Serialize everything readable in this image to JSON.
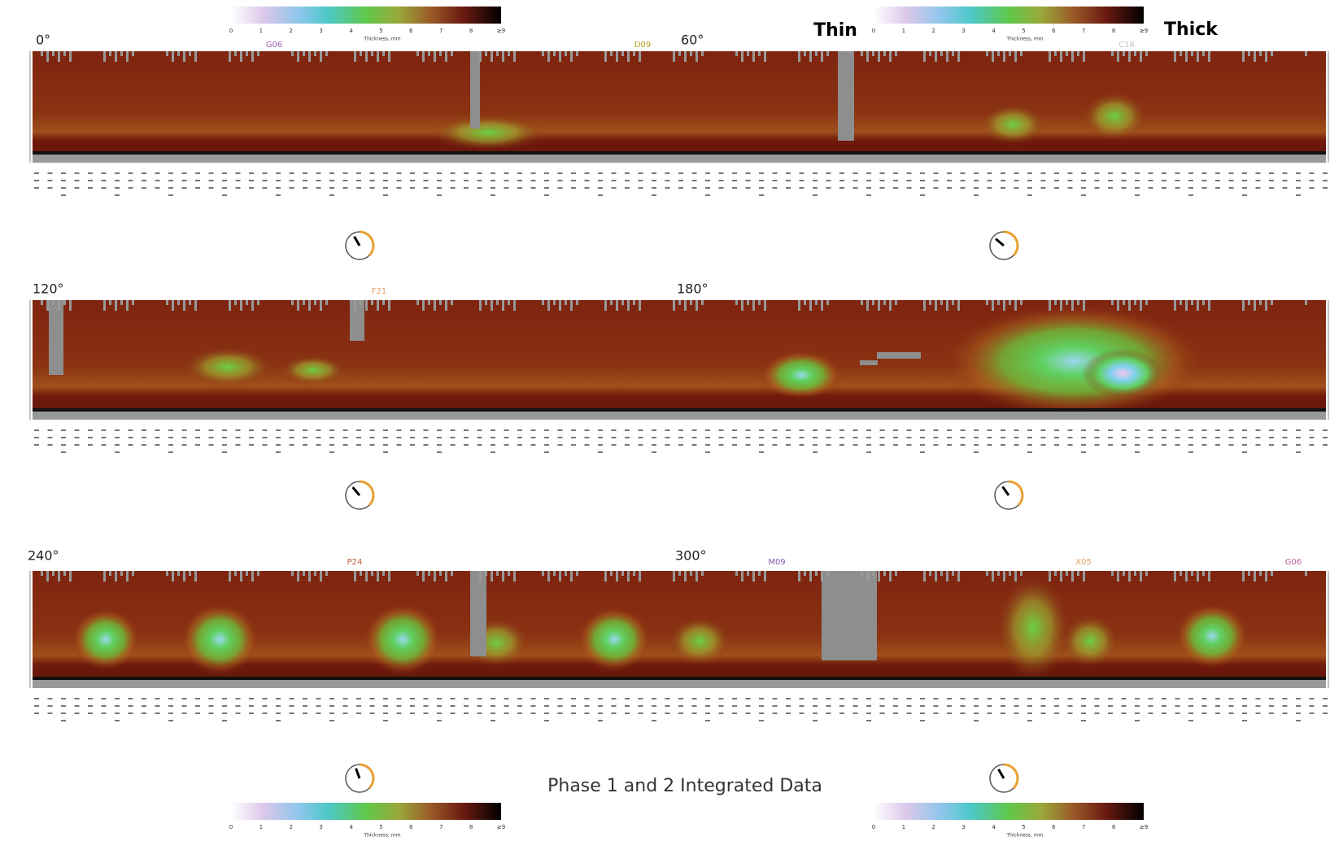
{
  "colorbar": {
    "ticks": [
      "0",
      "1",
      "2",
      "3",
      "4",
      "5",
      "6",
      "7",
      "8",
      "≥9"
    ],
    "label": "Thickness, mm"
  },
  "scale_labels": {
    "thin": "Thin",
    "thick": "Thick"
  },
  "sections": [
    "0°",
    "60°",
    "120°",
    "180°",
    "240°",
    "300°"
  ],
  "locations": [
    "G06",
    "D09",
    "C16",
    "F21",
    "P24",
    "M09",
    "X05",
    "G06"
  ],
  "title": "Phase 1 and 2 Integrated Data"
}
